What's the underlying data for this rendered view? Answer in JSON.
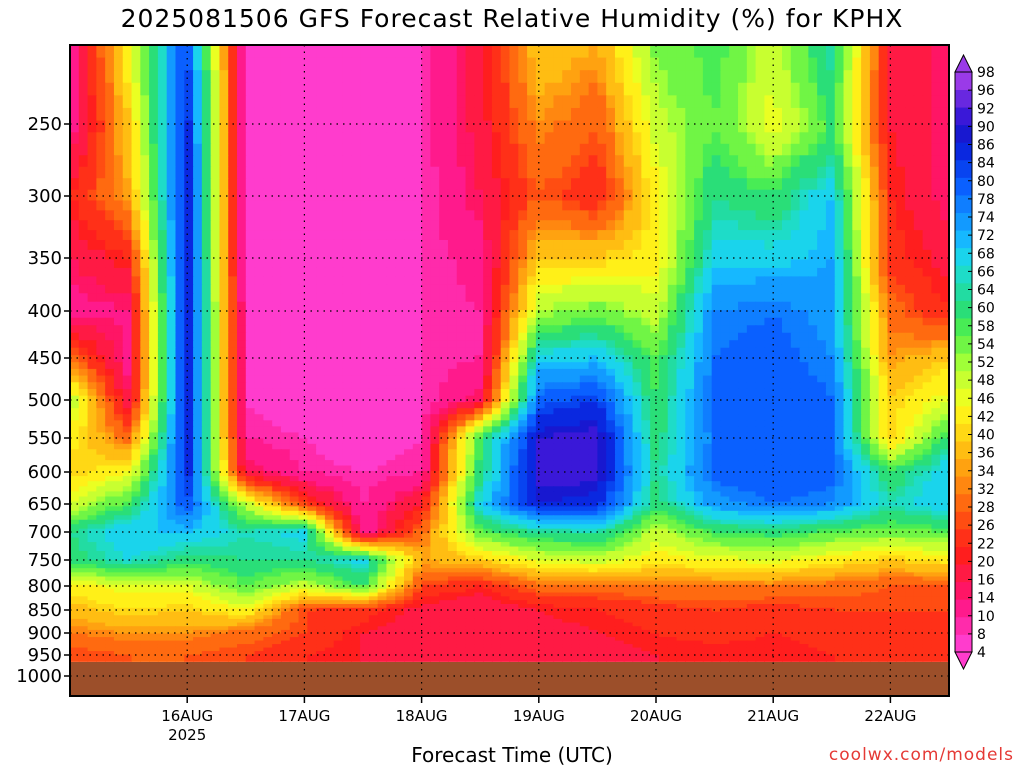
{
  "chart_data": {
    "type": "heatmap",
    "title": "2025081506 GFS Forecast Relative Humidity (%) for KPHX",
    "xlabel": "Forecast Time (UTC)",
    "ylabel": "",
    "credit": "coolwx.com/models",
    "x_ticks": [
      {
        "day": 15.25,
        "label": "16AUG",
        "sub": "2025"
      },
      {
        "day": 16.25,
        "label": "17AUG",
        "sub": ""
      },
      {
        "day": 17.25,
        "label": "18AUG",
        "sub": ""
      },
      {
        "day": 18.25,
        "label": "19AUG",
        "sub": ""
      },
      {
        "day": 19.25,
        "label": "20AUG",
        "sub": ""
      },
      {
        "day": 20.25,
        "label": "21AUG",
        "sub": ""
      },
      {
        "day": 21.25,
        "label": "22AUG",
        "sub": ""
      }
    ],
    "xlim_day": [
      14.25,
      21.75
    ],
    "y_ticks": [
      250,
      300,
      350,
      400,
      450,
      500,
      550,
      600,
      650,
      700,
      750,
      800,
      850,
      900,
      950,
      1000
    ],
    "ylim_hpa": [
      200,
      1020
    ],
    "surface_hpa": 965,
    "colorbar": {
      "levels": [
        4,
        8,
        10,
        14,
        16,
        20,
        22,
        26,
        28,
        32,
        34,
        36,
        40,
        42,
        46,
        48,
        52,
        54,
        58,
        60,
        64,
        66,
        68,
        72,
        74,
        78,
        80,
        84,
        86,
        90,
        92,
        96,
        98
      ],
      "colors": [
        "#ff3ccd",
        "#ff2bab",
        "#ff1a8c",
        "#ff1565",
        "#ff1a44",
        "#ff1e1e",
        "#ff3018",
        "#ff4d12",
        "#ff6a10",
        "#ff8710",
        "#ffa210",
        "#ffbd12",
        "#ffd815",
        "#fff018",
        "#eaff22",
        "#c8ff30",
        "#a0ff38",
        "#70f545",
        "#48ec55",
        "#2ade78",
        "#22dca2",
        "#1edcc8",
        "#1ad4ec",
        "#16b8ff",
        "#129aff",
        "#0f7eff",
        "#0a60ff",
        "#0844f0",
        "#0a28e0",
        "#1818d0",
        "#3a18d8",
        "#6828e0",
        "#9a3ae8"
      ]
    },
    "values_rh_pct": {
      "pressure_hpa": [
        200,
        250,
        300,
        350,
        400,
        450,
        500,
        550,
        600,
        650,
        700,
        750,
        800,
        850,
        900,
        950
      ],
      "day": [
        14.25,
        14.75,
        15.25,
        15.75,
        16.25,
        16.75,
        17.25,
        17.75,
        18.25,
        18.75,
        19.25,
        19.75,
        20.25,
        20.75,
        21.25,
        21.75
      ],
      "rh": [
        [
          10,
          45,
          85,
          6,
          4,
          4,
          8,
          18,
          40,
          36,
          55,
          60,
          50,
          66,
          20,
          14
        ],
        [
          10,
          40,
          88,
          6,
          4,
          4,
          8,
          18,
          34,
          28,
          50,
          58,
          46,
          60,
          20,
          14
        ],
        [
          22,
          35,
          90,
          6,
          4,
          4,
          8,
          16,
          28,
          22,
          44,
          64,
          60,
          72,
          22,
          14
        ],
        [
          16,
          22,
          92,
          6,
          4,
          4,
          8,
          12,
          40,
          40,
          44,
          70,
          70,
          74,
          24,
          18
        ],
        [
          12,
          14,
          92,
          8,
          4,
          4,
          8,
          10,
          52,
          56,
          50,
          78,
          80,
          76,
          30,
          22
        ],
        [
          30,
          12,
          92,
          8,
          4,
          4,
          8,
          10,
          70,
          72,
          58,
          80,
          82,
          78,
          34,
          40
        ],
        [
          52,
          16,
          92,
          8,
          4,
          4,
          8,
          16,
          82,
          86,
          60,
          82,
          84,
          80,
          40,
          48
        ],
        [
          44,
          30,
          90,
          10,
          8,
          4,
          8,
          60,
          92,
          94,
          62,
          80,
          84,
          82,
          40,
          62
        ],
        [
          40,
          46,
          88,
          16,
          10,
          8,
          10,
          62,
          94,
          94,
          64,
          82,
          84,
          82,
          60,
          72
        ],
        [
          48,
          60,
          84,
          50,
          26,
          10,
          20,
          70,
          90,
          88,
          62,
          76,
          80,
          78,
          66,
          72
        ],
        [
          64,
          72,
          72,
          66,
          70,
          10,
          30,
          58,
          64,
          66,
          50,
          60,
          62,
          58,
          56,
          58
        ],
        [
          62,
          68,
          62,
          64,
          64,
          70,
          36,
          40,
          48,
          50,
          44,
          46,
          48,
          44,
          40,
          44
        ],
        [
          44,
          48,
          48,
          58,
          50,
          60,
          26,
          22,
          30,
          30,
          32,
          32,
          32,
          30,
          28,
          28
        ],
        [
          38,
          42,
          40,
          46,
          26,
          24,
          18,
          16,
          20,
          22,
          24,
          26,
          24,
          26,
          26,
          26
        ],
        [
          32,
          34,
          34,
          30,
          26,
          20,
          18,
          16,
          18,
          20,
          22,
          24,
          22,
          24,
          24,
          24
        ],
        [
          26,
          28,
          28,
          26,
          22,
          20,
          18,
          16,
          16,
          18,
          20,
          20,
          20,
          22,
          22,
          22
        ]
      ]
    }
  }
}
